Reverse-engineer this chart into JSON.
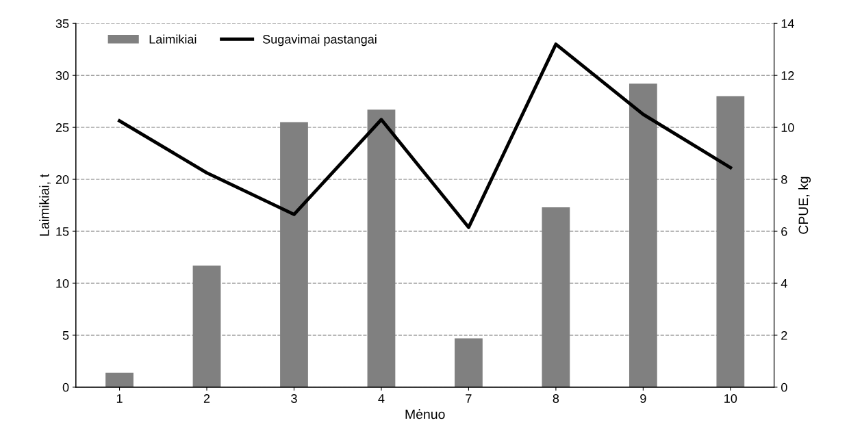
{
  "chart_data": {
    "type": "bar",
    "xlabel": "Mėnuo",
    "ylabel": "Laimikiai, t",
    "y2label": "CPUE, kg",
    "categories": [
      "1",
      "2",
      "3",
      "4",
      "7",
      "8",
      "9",
      "10"
    ],
    "series": [
      {
        "name": "Laimikiai",
        "color": "#808080",
        "values": [
          1.4,
          11.7,
          25.5,
          26.7,
          4.7,
          17.3,
          29.2,
          28.0
        ]
      },
      {
        "name": "Sugavimai pastangai",
        "type": "line",
        "axis": "y2",
        "color": "#000000",
        "values": [
          10.25,
          8.25,
          6.65,
          10.3,
          6.15,
          13.2,
          10.5,
          8.45
        ]
      }
    ],
    "ylim": [
      0,
      35
    ],
    "yticks": [
      0,
      5,
      10,
      15,
      20,
      25,
      30,
      35
    ],
    "y2lim": [
      0,
      14
    ],
    "y2ticks": [
      0,
      2,
      4,
      6,
      8,
      10,
      12,
      14
    ],
    "grid": "y",
    "legend": "top left",
    "marker": "none",
    "line_style": "solid"
  }
}
